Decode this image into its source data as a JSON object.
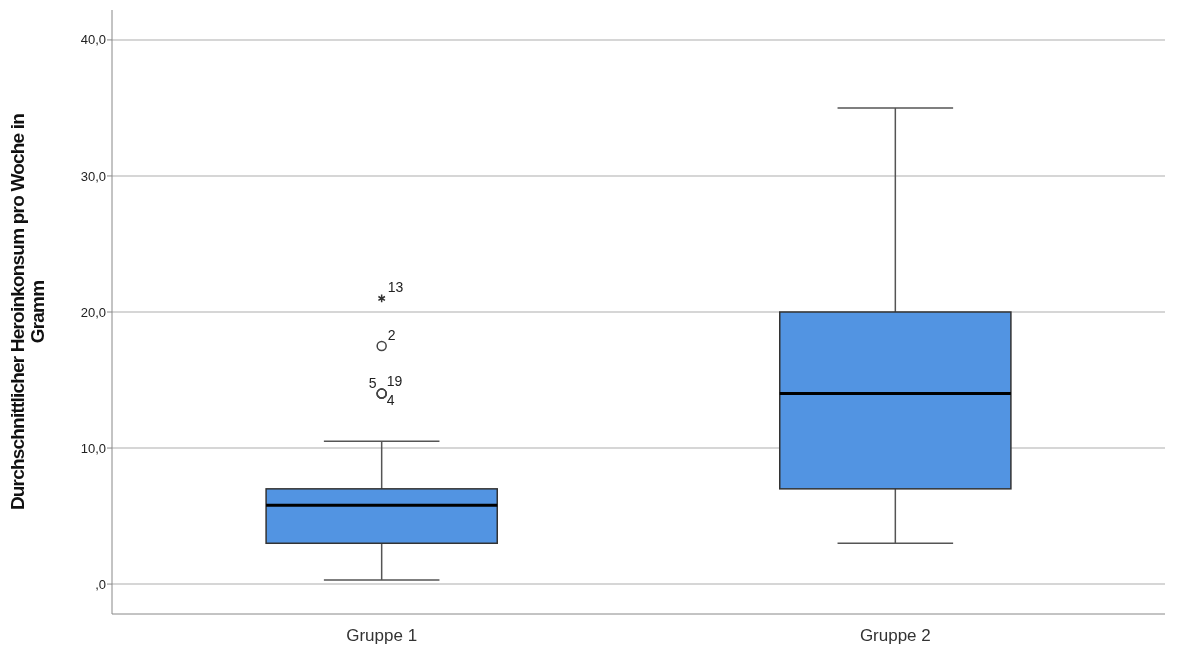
{
  "chart_data": {
    "type": "box",
    "ylabel": "Durchschnittlicher Heroinkonsum pro Woche in Gramm",
    "categories": [
      "Gruppe 1",
      "Gruppe 2"
    ],
    "boxes": [
      {
        "low": 0.3,
        "q1": 3.0,
        "median": 5.8,
        "q3": 7.0,
        "high": 10.5,
        "outliers": [
          14,
          14,
          14,
          17.5,
          21
        ]
      },
      {
        "low": 3.0,
        "q1": 7.0,
        "median": 14.0,
        "q3": 20.0,
        "high": 35.0
      }
    ],
    "color": "#5294e2",
    "ylim": [
      -2.2,
      42.2
    ],
    "yticks": [
      {
        "value": 0,
        "label": ",0"
      },
      {
        "value": 10,
        "label": "10,0"
      },
      {
        "value": 20,
        "label": "20,0"
      },
      {
        "value": 30,
        "label": "30,0"
      },
      {
        "value": 40,
        "label": "40,0"
      }
    ],
    "grid": "y",
    "annotations": [
      "13",
      "2",
      "5",
      "19",
      "4"
    ]
  }
}
